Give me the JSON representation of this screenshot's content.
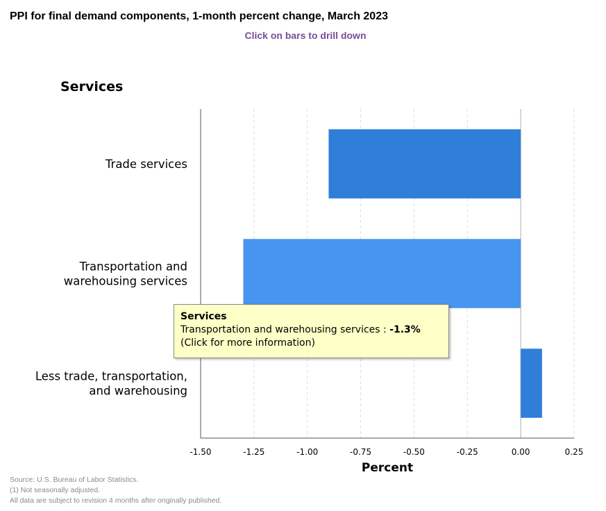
{
  "title": "PPI for final demand components, 1-month percent change, March 2023",
  "subtitle": "Click on bars to drill down",
  "panel_title": "Services",
  "chart_data": {
    "type": "bar",
    "orientation": "horizontal",
    "categories": [
      [
        "Trade services"
      ],
      [
        "Transportation and",
        "warehousing services"
      ],
      [
        "Less trade, transportation,",
        "and warehousing"
      ]
    ],
    "values": [
      -0.9,
      -1.3,
      0.1
    ],
    "xlabel": "Percent",
    "xlim": [
      -1.5,
      0.25
    ],
    "xticks": [
      -1.5,
      -1.25,
      -1.0,
      -0.75,
      -0.5,
      -0.25,
      0.0,
      0.25
    ],
    "xtick_labels": [
      "-1.50",
      "-1.25",
      "-1.00",
      "-0.75",
      "-0.50",
      "-0.25",
      "0.00",
      "0.25"
    ],
    "colors": [
      "#2f7ed8",
      "#4795ee",
      "#2f7ed8"
    ],
    "grid": "vertical dashed"
  },
  "tooltip": {
    "title": "Services",
    "label": "Transportation and warehousing services : ",
    "value": "-1.3%",
    "note": "(Click for more information)"
  },
  "source": {
    "line1": "Source: U.S. Bureau of Labor Statistics.",
    "line2": "(1) Not seasonally adjusted.",
    "line3": "All data are subject to revision 4 months after originally published."
  }
}
